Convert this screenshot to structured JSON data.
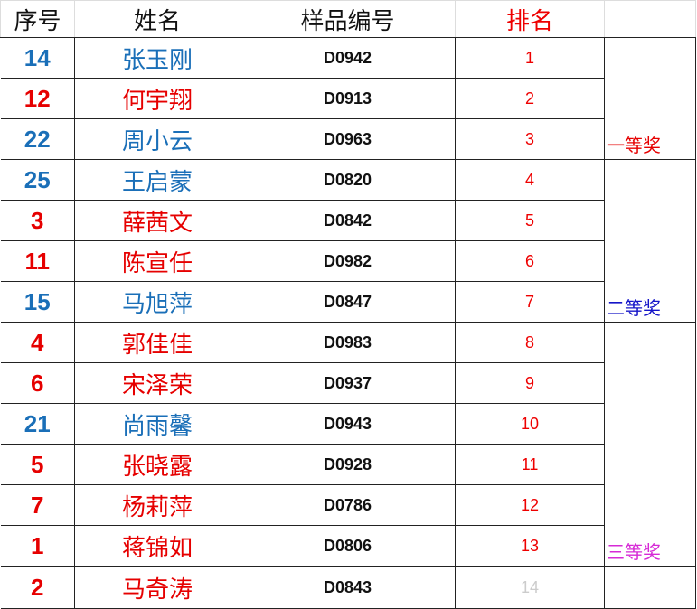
{
  "headers": {
    "seq": "序号",
    "name": "姓名",
    "code": "样品编号",
    "rank": "排名",
    "prize": ""
  },
  "colors": {
    "blue": "#1a6fb8",
    "red": "#e60000"
  },
  "rows": [
    {
      "seq": "14",
      "name": "张玉刚",
      "code": "D0942",
      "rank": "1",
      "color": "blue"
    },
    {
      "seq": "12",
      "name": "何宇翔",
      "code": "D0913",
      "rank": "2",
      "color": "red"
    },
    {
      "seq": "22",
      "name": "周小云",
      "code": "D0963",
      "rank": "3",
      "color": "blue"
    },
    {
      "seq": "25",
      "name": "王启蒙",
      "code": "D0820",
      "rank": "4",
      "color": "blue"
    },
    {
      "seq": "3",
      "name": "薛茜文",
      "code": "D0842",
      "rank": "5",
      "color": "red"
    },
    {
      "seq": "11",
      "name": "陈宣任",
      "code": "D0982",
      "rank": "6",
      "color": "red"
    },
    {
      "seq": "15",
      "name": "马旭萍",
      "code": "D0847",
      "rank": "7",
      "color": "blue"
    },
    {
      "seq": "4",
      "name": "郭佳佳",
      "code": "D0983",
      "rank": "8",
      "color": "red"
    },
    {
      "seq": "6",
      "name": "宋泽荣",
      "code": "D0937",
      "rank": "9",
      "color": "red"
    },
    {
      "seq": "21",
      "name": "尚雨馨",
      "code": "D0943",
      "rank": "10",
      "color": "blue"
    },
    {
      "seq": "5",
      "name": "张晓露",
      "code": "D0928",
      "rank": "11",
      "color": "red"
    },
    {
      "seq": "7",
      "name": "杨莉萍",
      "code": "D0786",
      "rank": "12",
      "color": "red"
    },
    {
      "seq": "1",
      "name": "蒋锦如",
      "code": "D0806",
      "rank": "13",
      "color": "red"
    },
    {
      "seq": "2",
      "name": "马奇涛",
      "code": "D0843",
      "rank": "14",
      "color": "red"
    }
  ],
  "prizes": [
    {
      "label": "一等奖",
      "span": 3,
      "color": "#e60000"
    },
    {
      "label": "二等奖",
      "span": 4,
      "color": "#1515c8"
    },
    {
      "label": "三等奖",
      "span": 6,
      "color": "#d62ad6"
    },
    {
      "label": "",
      "span": 1,
      "color": "#000000"
    }
  ]
}
